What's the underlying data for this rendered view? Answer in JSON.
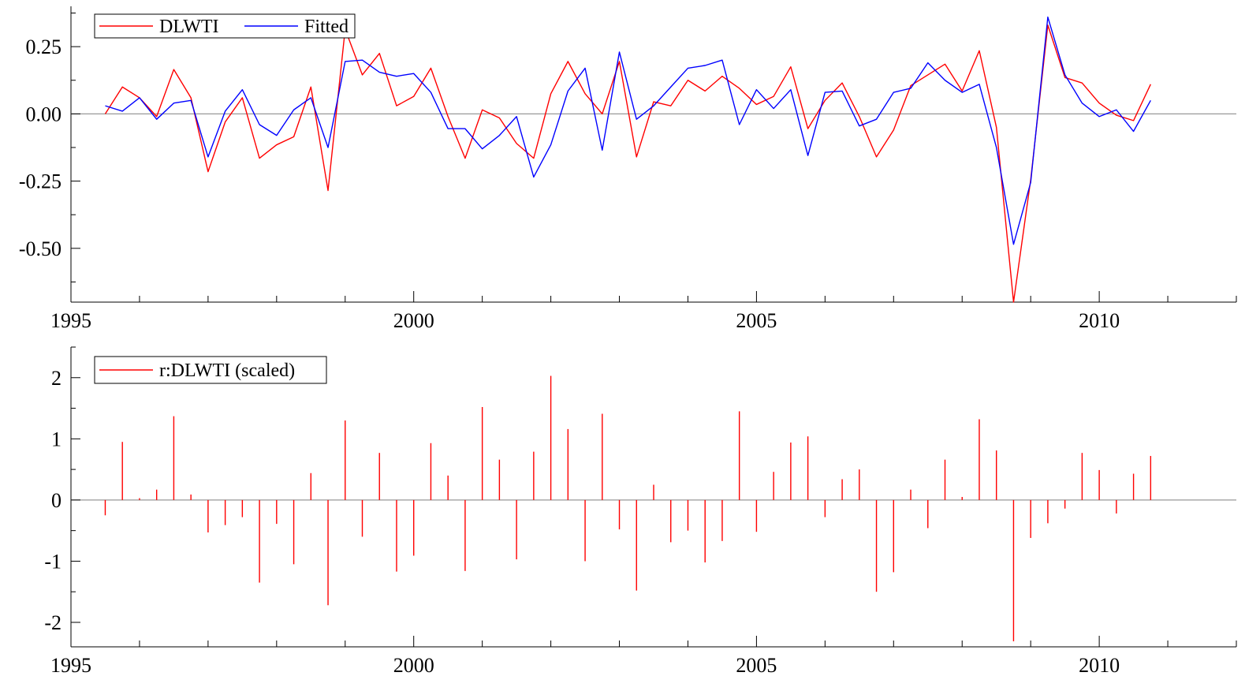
{
  "chart_data": [
    {
      "type": "line",
      "title": "",
      "xlabel": "",
      "ylabel": "",
      "xlim": [
        1995.0,
        2012.0
      ],
      "ylim": [
        -0.7,
        0.4
      ],
      "x_ticks": [
        1995,
        2000,
        2005,
        2010
      ],
      "x_tick_labels": [
        "1995",
        "2000",
        "2005",
        "2010"
      ],
      "y_ticks": [
        0.25,
        0.0,
        -0.25,
        -0.5
      ],
      "y_tick_labels": [
        "0.25",
        "0.00",
        "-0.25",
        "-0.50"
      ],
      "zero_line": true,
      "legend": {
        "position": "top-left",
        "entries": [
          "DLWTI",
          "Fitted"
        ]
      },
      "x": [
        1995.5,
        1995.75,
        1996.0,
        1996.25,
        1996.5,
        1996.75,
        1997.0,
        1997.25,
        1997.5,
        1997.75,
        1998.0,
        1998.25,
        1998.5,
        1998.75,
        1999.0,
        1999.25,
        1999.5,
        1999.75,
        2000.0,
        2000.25,
        2000.5,
        2000.75,
        2001.0,
        2001.25,
        2001.5,
        2001.75,
        2002.0,
        2002.25,
        2002.5,
        2002.75,
        2003.0,
        2003.25,
        2003.5,
        2003.75,
        2004.0,
        2004.25,
        2004.5,
        2004.75,
        2005.0,
        2005.25,
        2005.5,
        2005.75,
        2006.0,
        2006.25,
        2006.5,
        2006.75,
        2007.0,
        2007.25,
        2007.5,
        2007.75,
        2008.0,
        2008.25,
        2008.5,
        2008.75,
        2009.0,
        2009.25,
        2009.5,
        2009.75,
        2010.0,
        2010.25,
        2010.5,
        2010.75
      ],
      "series": [
        {
          "name": "DLWTI",
          "color": "#ff0000",
          "values": [
            0.0,
            0.1,
            0.06,
            -0.01,
            0.165,
            0.06,
            -0.215,
            -0.03,
            0.06,
            -0.165,
            -0.115,
            -0.085,
            0.1,
            -0.285,
            0.315,
            0.145,
            0.225,
            0.03,
            0.065,
            0.17,
            -0.01,
            -0.165,
            0.015,
            -0.015,
            -0.11,
            -0.165,
            0.075,
            0.195,
            0.075,
            0.0,
            0.195,
            -0.16,
            0.045,
            0.03,
            0.125,
            0.085,
            0.14,
            0.095,
            0.035,
            0.065,
            0.175,
            -0.055,
            0.05,
            0.115,
            -0.01,
            -0.16,
            -0.06,
            0.105,
            0.145,
            0.185,
            0.085,
            0.235,
            -0.05,
            -0.7,
            -0.245,
            0.33,
            0.135,
            0.115,
            0.04,
            -0.005,
            -0.025,
            0.11
          ]
        },
        {
          "name": "Fitted",
          "color": "#0000ff",
          "values": [
            0.03,
            0.01,
            0.06,
            -0.02,
            0.04,
            0.05,
            -0.16,
            0.01,
            0.09,
            -0.04,
            -0.08,
            0.015,
            0.06,
            -0.125,
            0.195,
            0.2,
            0.155,
            0.14,
            0.15,
            0.08,
            -0.055,
            -0.055,
            -0.13,
            -0.08,
            -0.01,
            -0.235,
            -0.115,
            0.085,
            0.17,
            -0.135,
            0.23,
            -0.02,
            0.03,
            0.1,
            0.17,
            0.18,
            0.2,
            -0.04,
            0.09,
            0.02,
            0.09,
            -0.155,
            0.08,
            0.085,
            -0.045,
            -0.02,
            0.08,
            0.095,
            0.19,
            0.125,
            0.08,
            0.11,
            -0.125,
            -0.485,
            -0.255,
            0.36,
            0.145,
            0.04,
            -0.01,
            0.015,
            -0.065,
            0.05
          ]
        }
      ]
    },
    {
      "type": "bar",
      "title": "",
      "xlabel": "",
      "ylabel": "",
      "xlim": [
        1995.0,
        2012.0
      ],
      "ylim": [
        -2.4,
        2.5
      ],
      "x_ticks": [
        1995,
        2000,
        2005,
        2010
      ],
      "x_tick_labels": [
        "1995",
        "2000",
        "2005",
        "2010"
      ],
      "y_ticks": [
        2,
        1,
        0,
        -1,
        -2
      ],
      "y_tick_labels": [
        "2",
        "1",
        "0",
        "-1",
        "-2"
      ],
      "zero_line": true,
      "legend": {
        "position": "top-left",
        "entries": [
          "r:DLWTI (scaled)"
        ]
      },
      "x": [
        1995.5,
        1995.75,
        1996.0,
        1996.25,
        1996.5,
        1996.75,
        1997.0,
        1997.25,
        1997.5,
        1997.75,
        1998.0,
        1998.25,
        1998.5,
        1998.75,
        1999.0,
        1999.25,
        1999.5,
        1999.75,
        2000.0,
        2000.25,
        2000.5,
        2000.75,
        2001.0,
        2001.25,
        2001.5,
        2001.75,
        2002.0,
        2002.25,
        2002.5,
        2002.75,
        2003.0,
        2003.25,
        2003.5,
        2003.75,
        2004.0,
        2004.25,
        2004.5,
        2004.75,
        2005.0,
        2005.25,
        2005.5,
        2005.75,
        2006.0,
        2006.25,
        2006.5,
        2006.75,
        2007.0,
        2007.25,
        2007.5,
        2007.75,
        2008.0,
        2008.25,
        2008.5,
        2008.75,
        2009.0,
        2009.25,
        2009.5,
        2009.75,
        2010.0,
        2010.25,
        2010.5,
        2010.75
      ],
      "series": [
        {
          "name": "r:DLWTI (scaled)",
          "color": "#ff0000",
          "values": [
            -0.25,
            0.95,
            0.03,
            0.17,
            1.37,
            0.09,
            -0.53,
            -0.41,
            -0.28,
            -1.35,
            -0.39,
            -1.05,
            0.44,
            -1.72,
            1.3,
            -0.6,
            0.77,
            -1.17,
            -0.91,
            0.93,
            0.4,
            -1.16,
            1.52,
            0.66,
            -0.97,
            0.79,
            2.03,
            1.16,
            -1.0,
            1.41,
            -0.48,
            -1.48,
            0.25,
            -0.69,
            -0.5,
            -1.02,
            -0.67,
            1.45,
            -0.52,
            0.46,
            0.94,
            1.04,
            -0.28,
            0.34,
            0.5,
            -1.5,
            -1.18,
            0.17,
            -0.46,
            0.66,
            0.05,
            1.32,
            0.81,
            -2.31,
            -0.62,
            -0.38,
            -0.14,
            0.77,
            0.49,
            -0.22,
            0.43,
            0.72
          ]
        }
      ]
    }
  ]
}
